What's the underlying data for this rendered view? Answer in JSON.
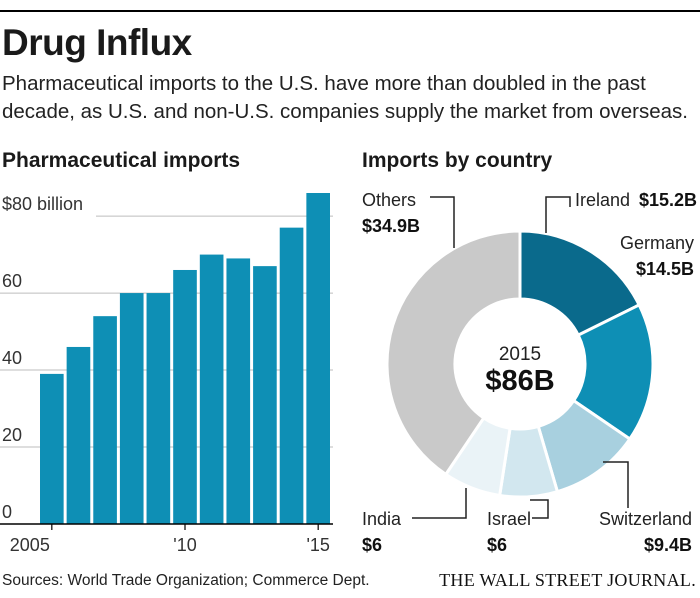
{
  "header": {
    "title": "Drug Influx",
    "subtitle": "Pharmaceutical imports to the U.S. have more than doubled in the past decade, as U.S. and non-U.S. companies supply the market from overseas."
  },
  "chart_data": [
    {
      "type": "bar",
      "title": "Pharmaceutical imports",
      "x": [
        2005,
        2006,
        2007,
        2008,
        2009,
        2010,
        2011,
        2012,
        2013,
        2014,
        2015
      ],
      "values": [
        39,
        46,
        54,
        60,
        60,
        66,
        70,
        69,
        67,
        77,
        86
      ],
      "x_tick_labels": [
        "2005",
        "'10",
        "'15"
      ],
      "x_tick_years": [
        2005,
        2010,
        2015
      ],
      "y_tick_labels": [
        "$80 billion",
        "60",
        "40",
        "20",
        "0"
      ],
      "y_tick_values": [
        80,
        60,
        40,
        20,
        0
      ],
      "ylim": [
        0,
        86
      ],
      "grid": true,
      "bar_color": "#0e8fb5"
    },
    {
      "type": "pie",
      "title": "Imports by country",
      "center_year": "2015",
      "center_total": "$86B",
      "slices": [
        {
          "name": "Ireland",
          "value": 15.2,
          "label": "$15.2B",
          "color": "#0a6a8c"
        },
        {
          "name": "Germany",
          "value": 14.5,
          "label": "$14.5B",
          "color": "#0e8fb5"
        },
        {
          "name": "Switzerland",
          "value": 9.4,
          "label": "$9.4B",
          "color": "#a8d0df"
        },
        {
          "name": "Israel",
          "value": 6,
          "label": "$6",
          "color": "#d2e7ef"
        },
        {
          "name": "India",
          "value": 6,
          "label": "$6",
          "color": "#eaf3f7"
        },
        {
          "name": "Others",
          "value": 34.9,
          "label": "$34.9B",
          "color": "#c9c9c9"
        }
      ]
    }
  ],
  "footer": {
    "sources": "Sources: World Trade Organization; Commerce Dept.",
    "publisher": "THE WALL STREET JOURNAL."
  }
}
